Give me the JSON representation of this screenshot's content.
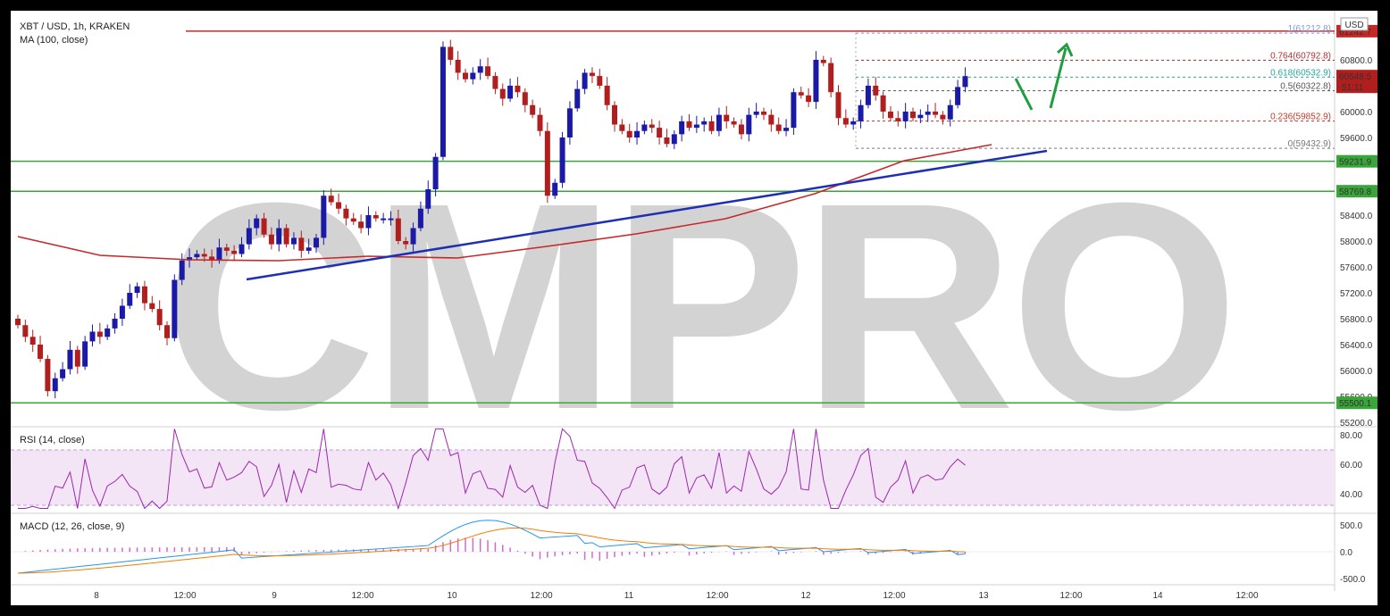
{
  "header": {
    "symbol": "XBT / USD, 1h, KRAKEN",
    "ma": "MA (100, close)",
    "rsi": "RSI (14, close)",
    "macd": "MACD (12, 26, close, 9)",
    "currency": "USD",
    "watermark": "CMPRO"
  },
  "price_badges": {
    "current": "60548.5",
    "countdown": "51:11",
    "res_top": "61242.7",
    "sup1": "59231.9",
    "sup2": "58769.8",
    "sup3": "55500.1"
  },
  "colors": {
    "up": "#1a1aa6",
    "down": "#b01e1e",
    "ma": "#c62828",
    "trend": "#1f2fb3",
    "support": "#3aa53a",
    "rsi": "#9c27b0",
    "rsi_band": "#f3e5f5",
    "macd": "#2196f3",
    "signal": "#f57c00",
    "hist": "#d06ad0",
    "arrow": "#1e9e3e"
  },
  "chart_data": {
    "type": "candlestick",
    "title": "XBT / USD, 1h, KRAKEN",
    "price_axis": {
      "ticks": [
        "55200.0",
        "55600.0",
        "56000.0",
        "56400.0",
        "56800.0",
        "57200.0",
        "57600.0",
        "58000.0",
        "58400.0",
        "59600.0",
        "60000.0",
        "60800.0"
      ],
      "range": [
        55080,
        61530
      ]
    },
    "time_axis": [
      "8",
      "12:00",
      "9",
      "12:00",
      "10",
      "12:00",
      "11",
      "12:00",
      "12",
      "12:00",
      "13",
      "12:00",
      "14",
      "12:00"
    ],
    "horizontal_levels": [
      61242.7,
      59231.9,
      58769.8,
      55500.1
    ],
    "fibonacci": [
      {
        "label": "1(61212.8)",
        "value": 61212.8
      },
      {
        "label": "0.764(60792.8)",
        "value": 60792.8
      },
      {
        "label": "0.618(60532.9)",
        "value": 60532.9
      },
      {
        "label": "0.5(60322.8)",
        "value": 60322.8
      },
      {
        "label": "0.236(59852.9)",
        "value": 59852.9
      },
      {
        "label": "0(59432.9)",
        "value": 59432.9
      }
    ],
    "candles_close": [
      56700,
      56520,
      56400,
      56180,
      55680,
      55880,
      56020,
      56320,
      56060,
      56450,
      56600,
      56520,
      56650,
      56800,
      57000,
      57200,
      57300,
      57040,
      56950,
      56700,
      56500,
      57400,
      57700,
      57750,
      57800,
      57760,
      57700,
      57900,
      57850,
      57800,
      57950,
      58200,
      58350,
      58100,
      57950,
      58200,
      57950,
      58050,
      57850,
      57900,
      58050,
      58700,
      58600,
      58500,
      58350,
      58300,
      58200,
      58400,
      58350,
      58350,
      58350,
      58000,
      57950,
      58200,
      58500,
      58800,
      59300,
      61000,
      60800,
      60600,
      60500,
      60600,
      60700,
      60550,
      60350,
      60200,
      60400,
      60300,
      60100,
      59950,
      59700,
      58700,
      58900,
      59600,
      60050,
      60350,
      60600,
      60550,
      60400,
      60100,
      59800,
      59700,
      59600,
      59700,
      59800,
      59750,
      59600,
      59500,
      59650,
      59850,
      59750,
      59800,
      59850,
      59700,
      59950,
      59850,
      59800,
      59650,
      59950,
      60000,
      59950,
      59800,
      59700,
      59750,
      60300,
      60250,
      60150,
      60800,
      60750,
      60300,
      59900,
      59800,
      59850,
      60100,
      60400,
      60250,
      60000,
      59900,
      59850,
      60000,
      59900,
      59950,
      60000,
      59950,
      59880,
      60100,
      60380,
      60548.5
    ],
    "candles_open": [
      56800,
      56700,
      56520,
      56400,
      56180,
      55680,
      55880,
      56020,
      56320,
      56060,
      56450,
      56600,
      56520,
      56650,
      56800,
      57000,
      57200,
      57300,
      57040,
      56950,
      56700,
      56500,
      57400,
      57700,
      57750,
      57800,
      57760,
      57700,
      57900,
      57850,
      57800,
      57950,
      58200,
      58350,
      58100,
      57950,
      58200,
      57950,
      58050,
      57850,
      57900,
      58050,
      58700,
      58600,
      58500,
      58350,
      58300,
      58200,
      58400,
      58350,
      58350,
      58350,
      58000,
      57950,
      58200,
      58500,
      58800,
      59300,
      61000,
      60800,
      60600,
      60500,
      60600,
      60700,
      60550,
      60350,
      60200,
      60400,
      60300,
      60100,
      59950,
      59700,
      58700,
      58900,
      59600,
      60050,
      60350,
      60600,
      60550,
      60400,
      60100,
      59800,
      59700,
      59600,
      59700,
      59800,
      59750,
      59600,
      59500,
      59650,
      59850,
      59750,
      59800,
      59850,
      59700,
      59950,
      59850,
      59800,
      59650,
      59950,
      60000,
      59950,
      59800,
      59700,
      59750,
      60300,
      60250,
      60150,
      60800,
      60750,
      60300,
      59900,
      59800,
      59850,
      60100,
      60400,
      60250,
      60000,
      59900,
      59850,
      60000,
      59900,
      59950,
      60000,
      59950,
      59880,
      60100,
      60380
    ],
    "rsi_axis": [
      "80.00",
      "60.00",
      "40.00"
    ],
    "macd_axis": [
      "500.0",
      "0.0",
      "-500.0"
    ]
  }
}
